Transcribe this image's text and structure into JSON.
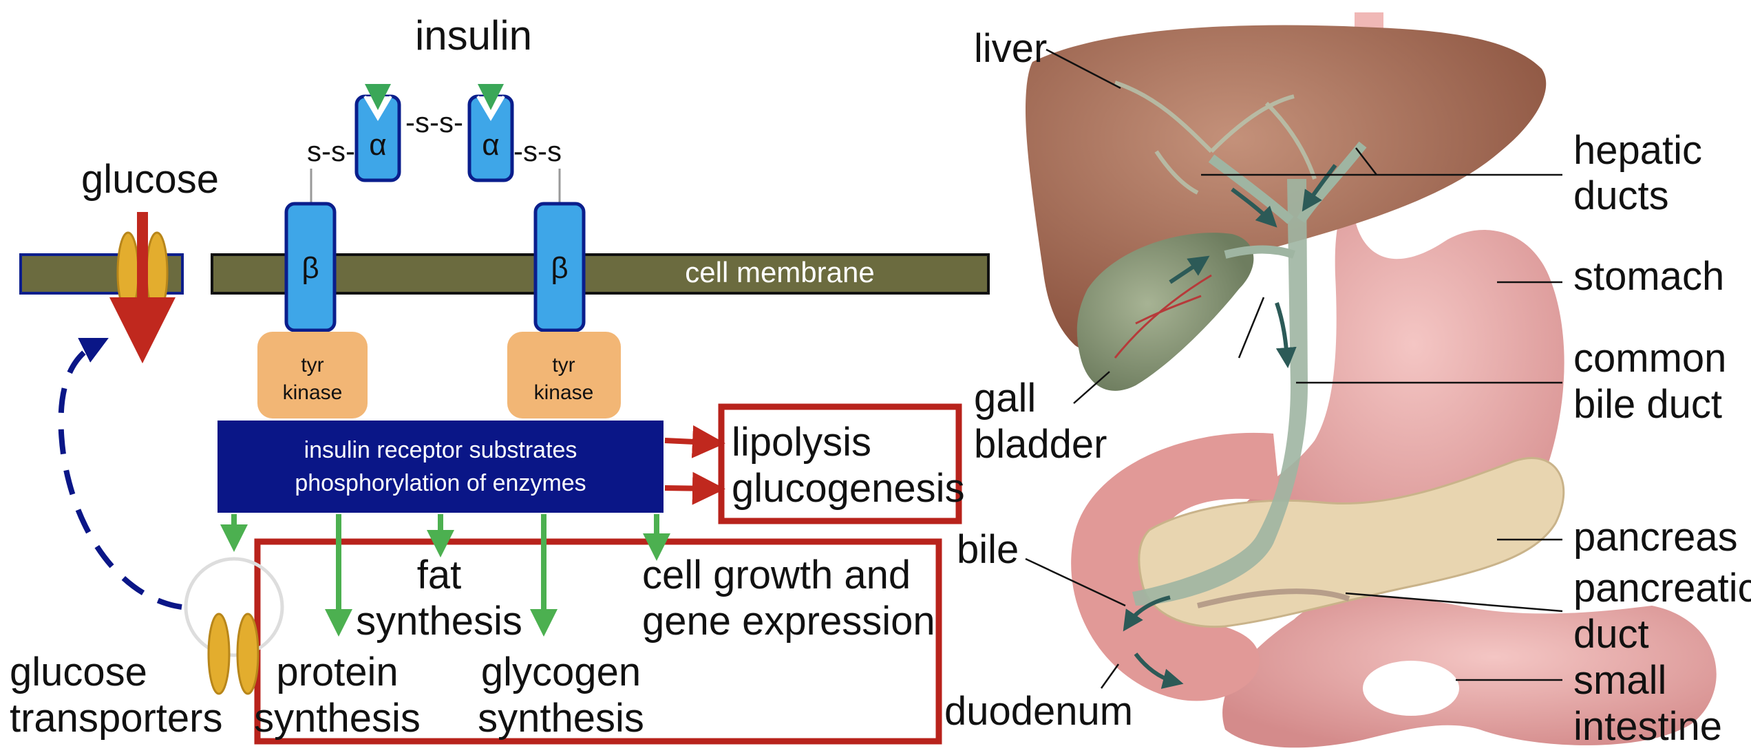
{
  "insulin_diagram": {
    "insulin_label": "insulin",
    "alpha_symbol": "α",
    "beta_symbol": "β",
    "ss_bond": "-s-s-",
    "ss_left": "s-s-",
    "ss_right": "-s-s",
    "glucose_label": "glucose",
    "membrane_label": "cell membrane",
    "tyr_kinase_line1": "tyr",
    "tyr_kinase_line2": "kinase",
    "irs_line1": "insulin receptor substrates",
    "irs_line2": "phosphorylation of enzymes",
    "inhibited_effects": [
      "lipolysis",
      "glucogenesis"
    ],
    "effects": {
      "fat_synthesis": [
        "fat",
        "synthesis"
      ],
      "cell_growth": [
        "cell growth and",
        "gene expression"
      ],
      "protein_synthesis": [
        "protein",
        "synthesis"
      ],
      "glycogen_synthesis": [
        "glycogen",
        "synthesis"
      ]
    },
    "transporters_label": [
      "glucose",
      "transporters"
    ],
    "colors": {
      "membrane": "#6b6b3f",
      "receptor": "#3ea6e8",
      "receptor_border": "#0a1e8c",
      "tyr_kinase": "#f2b675",
      "irs_box": "#0a1687",
      "red_arrow": "#c0281e",
      "green_arrow": "#4cb050",
      "transporter": "#e3ad2e",
      "dashed_arrow": "#0a1687",
      "effects_box_border": "#b8231c"
    }
  },
  "anatomy": {
    "labels": {
      "liver": "liver",
      "hepatic_ducts": [
        "hepatic",
        "ducts"
      ],
      "stomach": "stomach",
      "common_bile_duct": [
        "common",
        "bile duct"
      ],
      "gall_bladder": [
        "gall",
        "bladder"
      ],
      "bile": "bile",
      "pancreas": "pancreas",
      "pancreatic_duct": [
        "pancreatic",
        "duct"
      ],
      "small_intestine": [
        "small",
        "intestine"
      ],
      "duodenum": "duodenum"
    },
    "colors": {
      "liver": "#a86d54",
      "stomach": "#e6a7a5",
      "pancreas": "#e8d5b0",
      "gall_bladder": "#8d9c7e",
      "duct": "#9fb5a2"
    }
  }
}
